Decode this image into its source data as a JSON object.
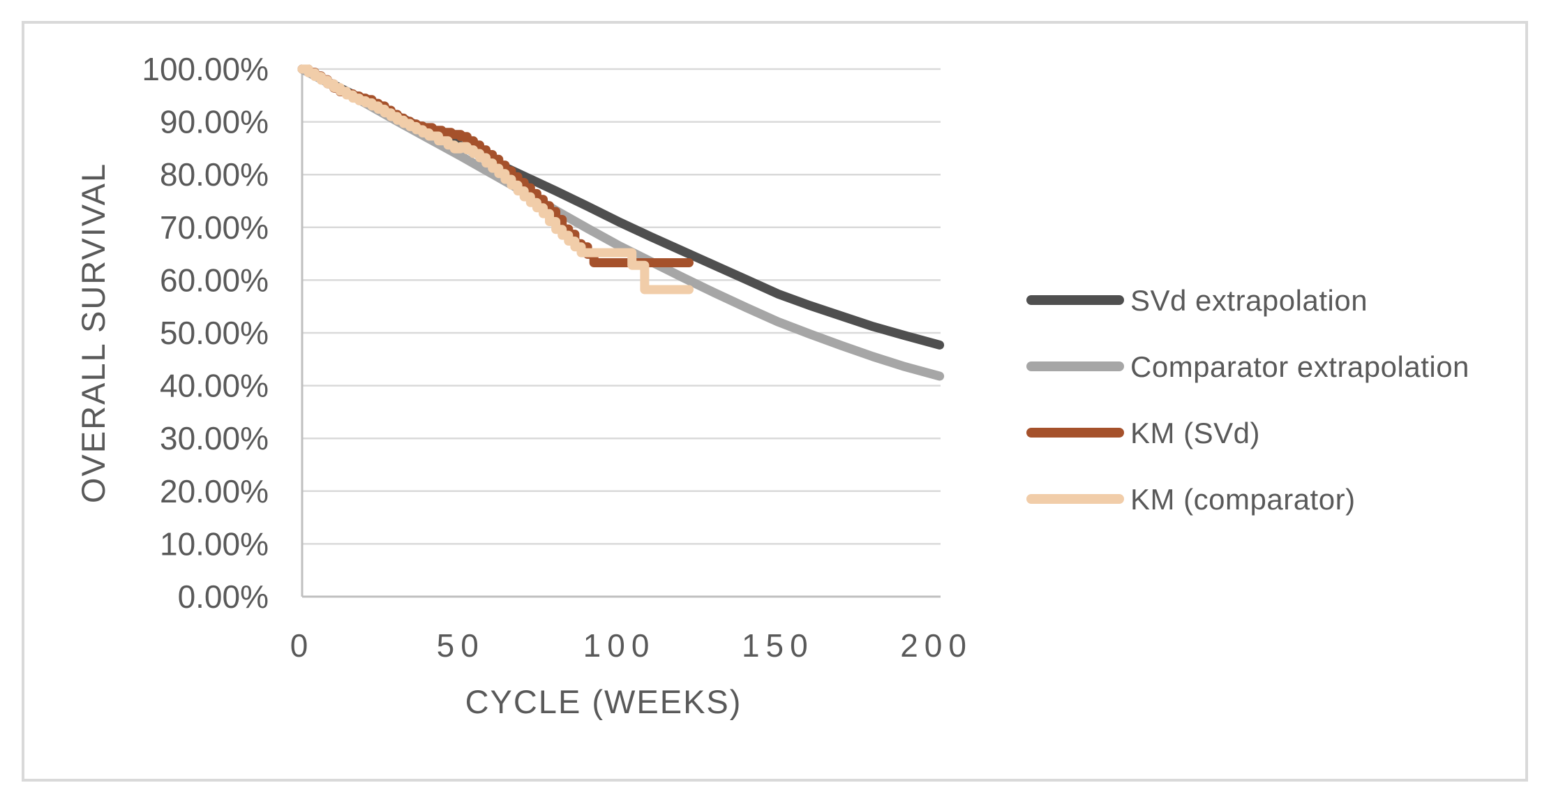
{
  "frame": {
    "background": "#FFFFFF",
    "border_color": "#D9D9D9"
  },
  "colors": {
    "text": "#595959",
    "gridline": "#D9D9D9",
    "axis_line": "#BFBFBF"
  },
  "chart_data": {
    "type": "line",
    "title": "",
    "xlabel": "CYCLE (WEEKS)",
    "ylabel": "OVERALL SURVIVAL",
    "xlim": [
      0,
      201.3
    ],
    "ylim": [
      0,
      100
    ],
    "grid": "horizontal-only",
    "legend_position": "right-middle",
    "x_ticks": [
      {
        "value": 0,
        "label": "0"
      },
      {
        "value": 50,
        "label": "50"
      },
      {
        "value": 100,
        "label": "100"
      },
      {
        "value": 150,
        "label": "150"
      },
      {
        "value": 200,
        "label": "200"
      }
    ],
    "y_ticks": [
      {
        "value": 100,
        "label": "100.00%"
      },
      {
        "value": 90,
        "label": "90.00%"
      },
      {
        "value": 80,
        "label": "80.00%"
      },
      {
        "value": 70,
        "label": "70.00%"
      },
      {
        "value": 60,
        "label": "60.00%"
      },
      {
        "value": 50,
        "label": "50.00%"
      },
      {
        "value": 40,
        "label": "40.00%"
      },
      {
        "value": 30,
        "label": "30.00%"
      },
      {
        "value": 20,
        "label": "20.00%"
      },
      {
        "value": 10,
        "label": "10.00%"
      },
      {
        "value": 0,
        "label": "0.00%"
      }
    ],
    "series": [
      {
        "name": "SVd extrapolation",
        "color": "#4F4F4F",
        "line_style": "line",
        "line_width": 13,
        "points": [
          [
            0,
            100
          ],
          [
            10,
            97.0
          ],
          [
            20,
            94.0
          ],
          [
            30,
            91.1
          ],
          [
            40,
            88.3
          ],
          [
            50,
            85.5
          ],
          [
            60,
            82.5
          ],
          [
            70,
            79.7
          ],
          [
            80,
            76.9
          ],
          [
            90,
            74.0
          ],
          [
            100,
            71.0
          ],
          [
            110,
            68.2
          ],
          [
            120,
            65.5
          ],
          [
            130,
            62.8
          ],
          [
            140,
            60.1
          ],
          [
            150,
            57.4
          ],
          [
            160,
            55.2
          ],
          [
            170,
            53.2
          ],
          [
            180,
            51.2
          ],
          [
            190,
            49.5
          ],
          [
            201,
            47.7
          ]
        ]
      },
      {
        "name": "Comparator extrapolation",
        "color": "#A6A6A6",
        "line_style": "line",
        "line_width": 13,
        "points": [
          [
            0,
            100
          ],
          [
            10,
            96.8
          ],
          [
            20,
            93.5
          ],
          [
            30,
            90.1
          ],
          [
            40,
            86.8
          ],
          [
            50,
            83.5
          ],
          [
            60,
            80.1
          ],
          [
            70,
            76.7
          ],
          [
            80,
            73.2
          ],
          [
            90,
            69.8
          ],
          [
            100,
            66.5
          ],
          [
            110,
            63.5
          ],
          [
            120,
            60.5
          ],
          [
            130,
            57.6
          ],
          [
            140,
            54.8
          ],
          [
            150,
            52.1
          ],
          [
            160,
            49.8
          ],
          [
            170,
            47.6
          ],
          [
            180,
            45.5
          ],
          [
            190,
            43.6
          ],
          [
            201,
            41.8
          ]
        ]
      },
      {
        "name": "KM (SVd)",
        "color": "#A5512B",
        "line_style": "step",
        "line_width": 13,
        "points": [
          [
            0,
            100
          ],
          [
            2,
            99.4
          ],
          [
            4,
            98.7
          ],
          [
            6,
            98.0
          ],
          [
            8,
            97.2
          ],
          [
            10,
            96.4
          ],
          [
            12,
            95.7
          ],
          [
            14,
            95.3
          ],
          [
            16,
            94.9
          ],
          [
            18,
            94.5
          ],
          [
            20,
            94.2
          ],
          [
            22,
            93.5
          ],
          [
            24,
            93.0
          ],
          [
            26,
            92.2
          ],
          [
            28,
            91.4
          ],
          [
            30,
            90.7
          ],
          [
            32,
            90.1
          ],
          [
            34,
            89.6
          ],
          [
            36,
            89.2
          ],
          [
            38,
            88.9
          ],
          [
            41,
            88.4
          ],
          [
            44,
            88.0
          ],
          [
            47,
            87.6
          ],
          [
            50,
            87.2
          ],
          [
            52,
            86.4
          ],
          [
            54,
            85.6
          ],
          [
            56,
            84.7
          ],
          [
            58,
            83.8
          ],
          [
            60,
            82.9
          ],
          [
            62,
            81.8
          ],
          [
            64,
            80.7
          ],
          [
            66,
            79.6
          ],
          [
            68,
            78.5
          ],
          [
            70,
            77.5
          ],
          [
            72,
            76.4
          ],
          [
            74,
            75.3
          ],
          [
            76,
            74.1
          ],
          [
            78,
            73.0
          ],
          [
            80,
            71.5
          ],
          [
            82,
            69.7
          ],
          [
            84,
            68.7
          ],
          [
            86,
            66.9
          ],
          [
            88,
            66.3
          ],
          [
            90,
            64.9
          ],
          [
            92,
            63.3
          ],
          [
            122,
            63.3
          ]
        ]
      },
      {
        "name": "KM (comparator)",
        "color": "#F1CDA9",
        "line_style": "step",
        "line_width": 13,
        "points": [
          [
            0,
            100
          ],
          [
            2,
            99.3
          ],
          [
            4,
            98.6
          ],
          [
            6,
            97.9
          ],
          [
            8,
            97.2
          ],
          [
            10,
            96.5
          ],
          [
            12,
            95.8
          ],
          [
            14,
            95.1
          ],
          [
            16,
            94.5
          ],
          [
            18,
            94.0
          ],
          [
            20,
            93.6
          ],
          [
            22,
            93.0
          ],
          [
            24,
            92.4
          ],
          [
            26,
            91.7
          ],
          [
            28,
            91.0
          ],
          [
            30,
            90.3
          ],
          [
            32,
            89.7
          ],
          [
            34,
            89.1
          ],
          [
            36,
            88.5
          ],
          [
            38,
            87.9
          ],
          [
            40,
            87.3
          ],
          [
            43,
            86.4
          ],
          [
            46,
            85.6
          ],
          [
            48,
            84.9
          ],
          [
            50,
            85.3
          ],
          [
            52,
            84.7
          ],
          [
            54,
            84.0
          ],
          [
            56,
            83.2
          ],
          [
            58,
            82.2
          ],
          [
            60,
            81.2
          ],
          [
            62,
            80.2
          ],
          [
            64,
            79.1
          ],
          [
            66,
            78.0
          ],
          [
            68,
            76.9
          ],
          [
            70,
            75.8
          ],
          [
            72,
            74.7
          ],
          [
            74,
            73.7
          ],
          [
            76,
            72.6
          ],
          [
            78,
            71.1
          ],
          [
            80,
            69.6
          ],
          [
            82,
            68.5
          ],
          [
            84,
            67.4
          ],
          [
            86,
            66.3
          ],
          [
            88,
            65.2
          ],
          [
            104,
            62.8
          ],
          [
            108,
            58.2
          ],
          [
            122,
            58.2
          ]
        ]
      }
    ]
  }
}
